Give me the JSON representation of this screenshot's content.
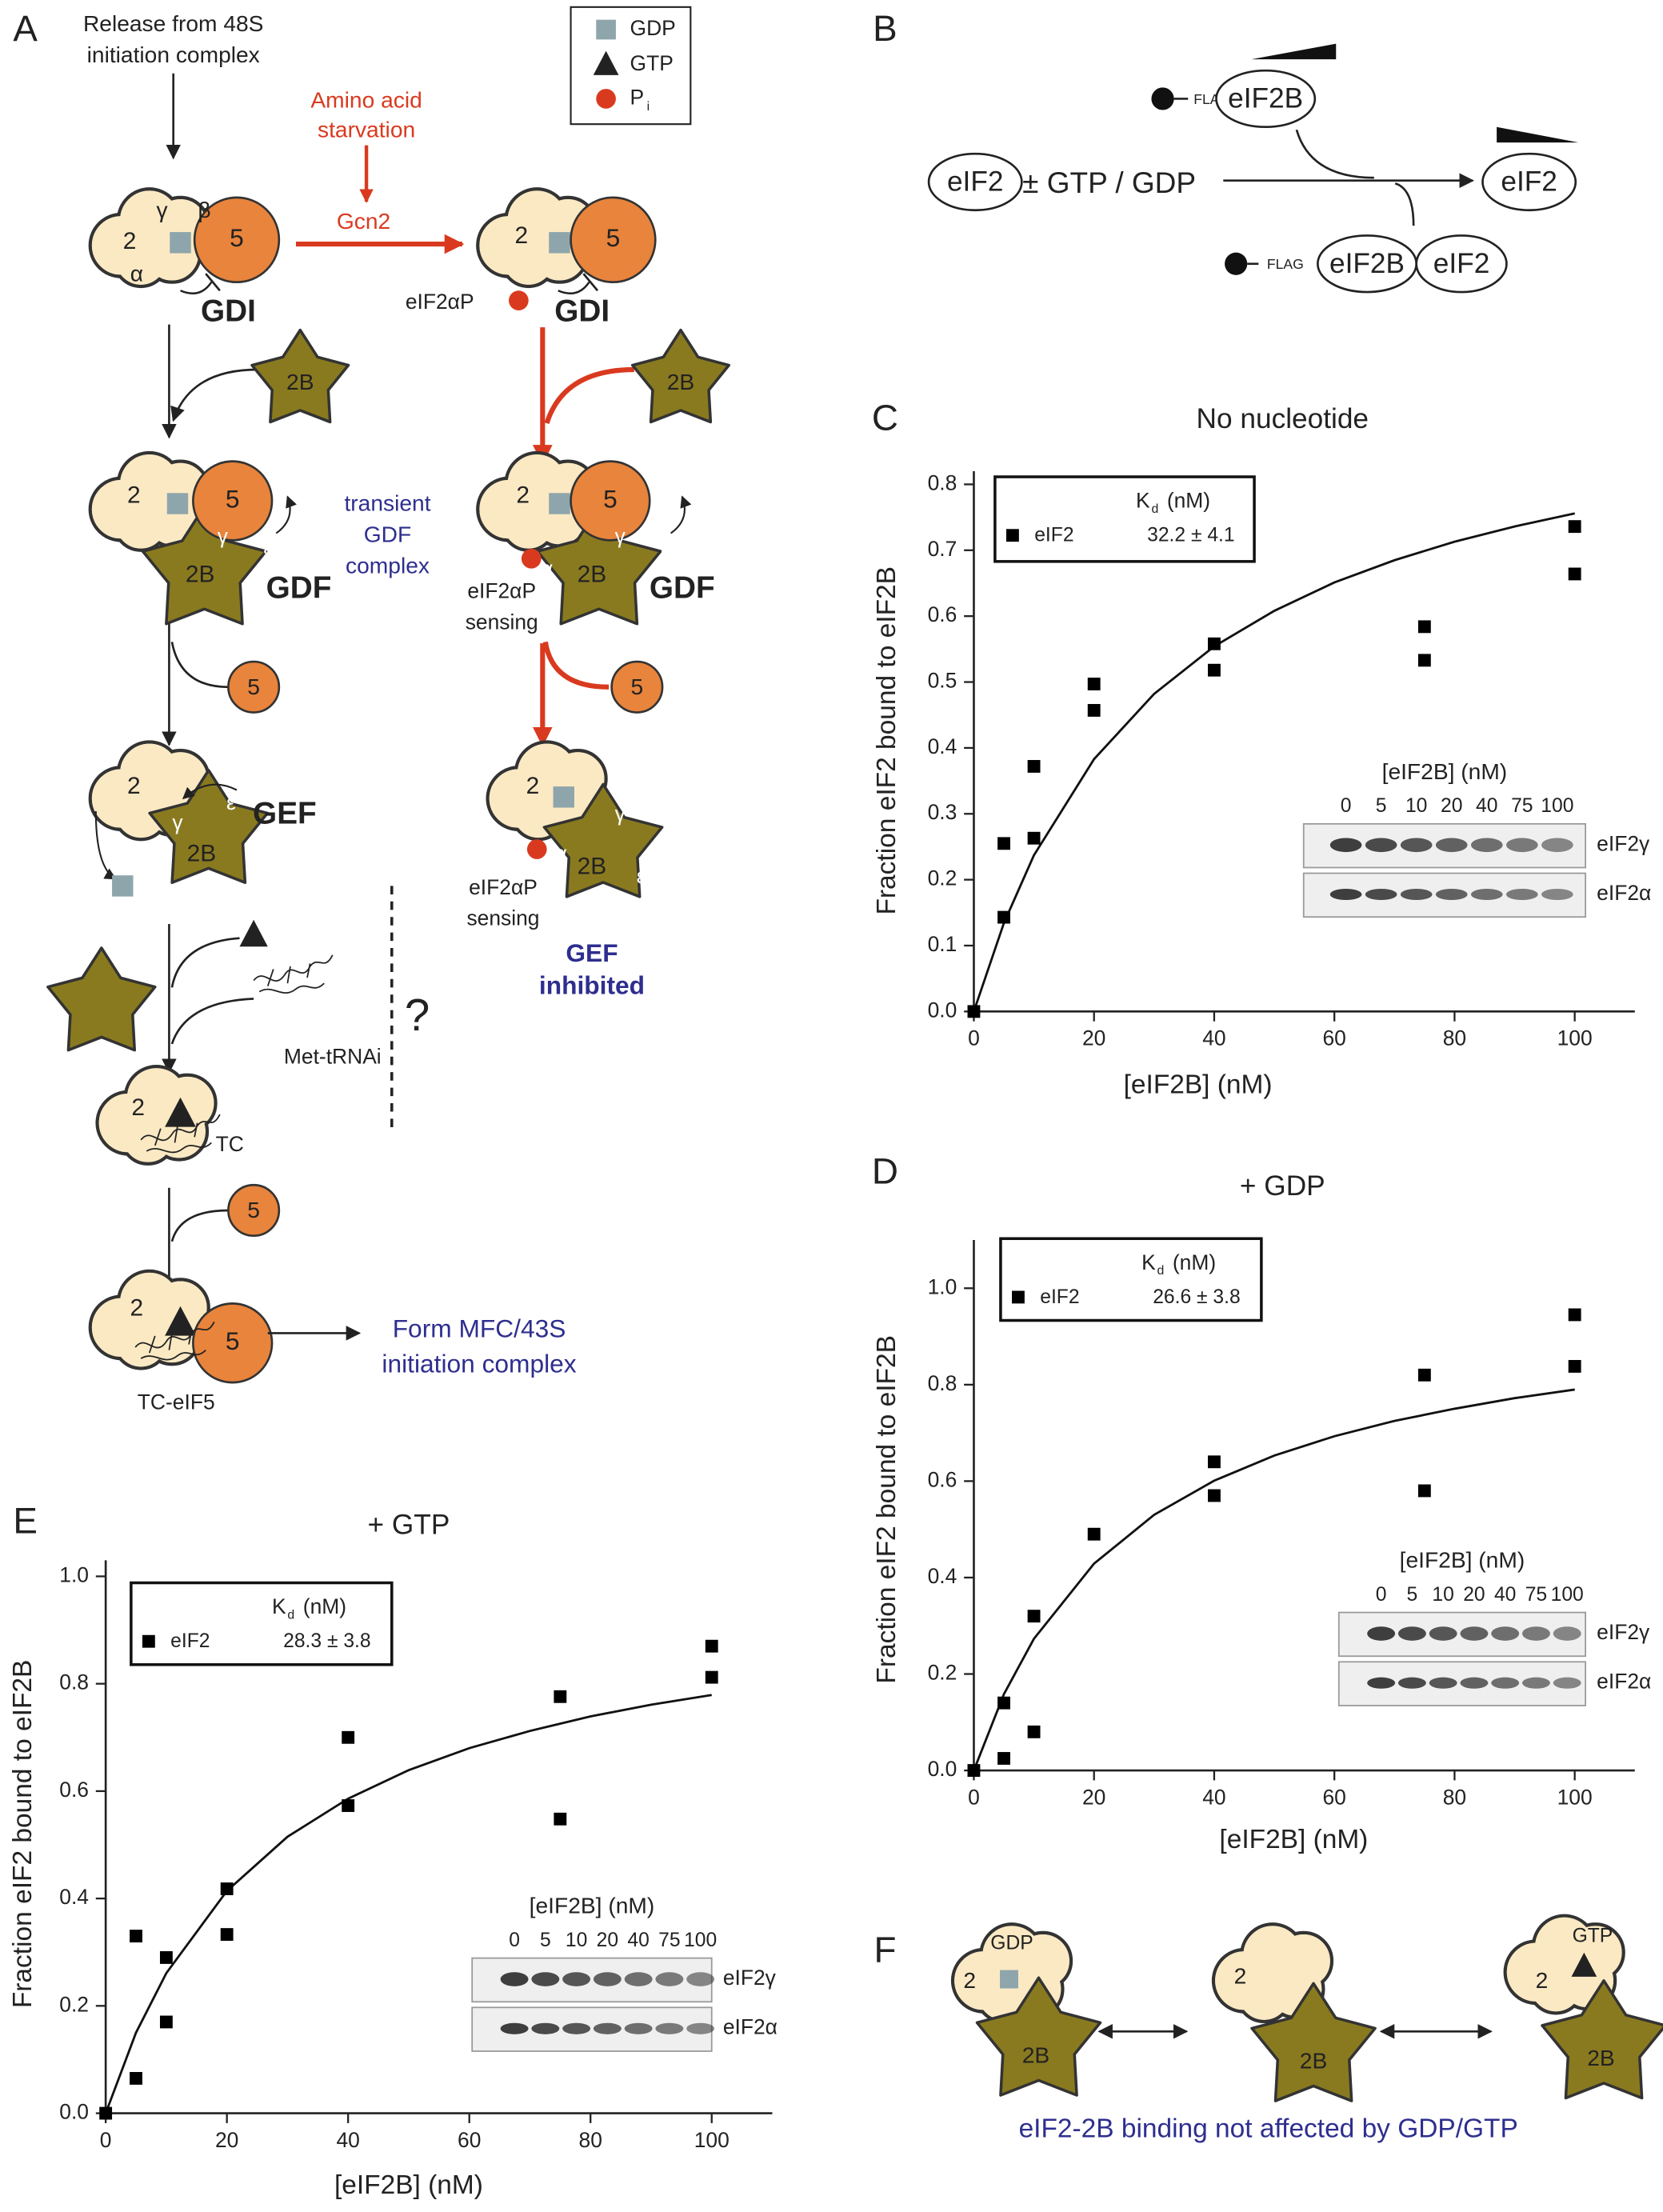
{
  "chart_data": [
    {
      "type": "scatter",
      "panel": "C",
      "title": "No nucleotide",
      "x_label": "[eIF2B] (nM)",
      "y_label": "Fraction eIF2 bound to eIF2B",
      "x": [
        0,
        5,
        5,
        10,
        10,
        20,
        20,
        40,
        40,
        75,
        75,
        100,
        100
      ],
      "series": [
        {
          "name": "eIF2",
          "color": "#000000",
          "values": [
            0,
            0.255,
            0.143,
            0.372,
            0.263,
            0.497,
            0.457,
            0.558,
            0.518,
            0.584,
            0.533,
            0.736,
            0.664
          ],
          "kd": "32.2 ± 4.1"
        }
      ],
      "fit": {
        "x": [
          0,
          5,
          10,
          20,
          30,
          40,
          50,
          60,
          70,
          80,
          90,
          100
        ],
        "y": [
          0,
          0.134,
          0.237,
          0.383,
          0.482,
          0.554,
          0.608,
          0.651,
          0.685,
          0.713,
          0.736,
          0.756
        ]
      },
      "legend_header": "K",
      "legend_header_sub": "d",
      "legend_header_unit": "(nM)",
      "inset": {
        "title": "[eIF2B] (nM)",
        "lanes": [
          0,
          5,
          10,
          20,
          40,
          75,
          100
        ],
        "bands": [
          "eIF2γ",
          "eIF2α"
        ]
      },
      "xlim": [
        0,
        110
      ],
      "xticks": [
        0,
        20,
        40,
        60,
        80,
        100
      ],
      "ylim": [
        0,
        0.82
      ],
      "yticks": [
        {
          "value": 0,
          "label": "0.0"
        },
        0.1,
        0.2,
        0.3,
        0.4,
        0.5,
        0.6,
        0.7,
        0.8
      ]
    },
    {
      "type": "scatter",
      "panel": "D",
      "title": "+ GDP",
      "x_label": "[eIF2B] (nM)",
      "y_label": "Fraction eIF2 bound to eIF2B",
      "x": [
        0,
        5,
        5,
        10,
        10,
        20,
        40,
        40,
        75,
        75,
        100,
        100
      ],
      "series": [
        {
          "name": "eIF2",
          "color": "#000000",
          "values": [
            0,
            0.14,
            0.025,
            0.32,
            0.08,
            0.49,
            0.64,
            0.57,
            0.82,
            0.58,
            0.945,
            0.838
          ],
          "kd": "26.6 ± 3.8"
        }
      ],
      "fit": {
        "x": [
          0,
          5,
          10,
          20,
          30,
          40,
          50,
          60,
          70,
          80,
          90,
          100
        ],
        "y": [
          0,
          0.158,
          0.273,
          0.429,
          0.53,
          0.601,
          0.653,
          0.693,
          0.725,
          0.75,
          0.772,
          0.79
        ]
      },
      "legend_header": "K",
      "legend_header_sub": "d",
      "legend_header_unit": "(nM)",
      "inset": {
        "title": "[eIF2B] (nM)",
        "lanes": [
          0,
          5,
          10,
          20,
          40,
          75,
          100
        ],
        "bands": [
          "eIF2γ",
          "eIF2α"
        ]
      },
      "xlim": [
        0,
        110
      ],
      "xticks": [
        0,
        20,
        40,
        60,
        80,
        100
      ],
      "ylim": [
        0,
        1.1
      ],
      "yticks": [
        {
          "value": 0,
          "label": "0.0"
        },
        0.2,
        0.4,
        0.6,
        0.8,
        {
          "value": 1,
          "label": "1.0"
        }
      ]
    },
    {
      "type": "scatter",
      "panel": "E",
      "title": "+ GTP",
      "x_label": "[eIF2B] (nM)",
      "y_label": "Fraction eIF2 bound to eIF2B",
      "x": [
        0,
        5,
        5,
        10,
        10,
        20,
        20,
        40,
        40,
        75,
        75,
        100,
        100
      ],
      "series": [
        {
          "name": "eIF2",
          "color": "#000000",
          "values": [
            0,
            0.33,
            0.065,
            0.29,
            0.17,
            0.418,
            0.333,
            0.7,
            0.573,
            0.776,
            0.548,
            0.87,
            0.812
          ],
          "kd": "28.3 ± 3.8"
        }
      ],
      "fit": {
        "x": [
          0,
          5,
          10,
          20,
          30,
          40,
          50,
          60,
          70,
          80,
          90,
          100
        ],
        "y": [
          0,
          0.15,
          0.261,
          0.414,
          0.515,
          0.586,
          0.639,
          0.68,
          0.712,
          0.739,
          0.761,
          0.779
        ]
      },
      "legend_header": "K",
      "legend_header_sub": "d",
      "legend_header_unit": "(nM)",
      "inset": {
        "title": "[eIF2B] (nM)",
        "lanes": [
          0,
          5,
          10,
          20,
          40,
          75,
          100
        ],
        "bands": [
          "eIF2γ",
          "eIF2α"
        ]
      },
      "xlim": [
        0,
        110
      ],
      "xticks": [
        0,
        20,
        40,
        60,
        80,
        100
      ],
      "ylim": [
        0,
        1.03
      ],
      "yticks": [
        {
          "value": 0,
          "label": "0.0"
        },
        0.2,
        0.4,
        0.6,
        0.8,
        {
          "value": 1,
          "label": "1.0"
        }
      ]
    }
  ],
  "panel_a": {
    "letter": "A",
    "release": [
      "Release from 48S",
      "initiation complex"
    ],
    "legend": {
      "gdp": "GDP",
      "gtp": "GTP",
      "pi": "P",
      "pi_sub": "i"
    },
    "starvation": [
      "Amino acid",
      "starvation"
    ],
    "gcn2": "Gcn2",
    "subunits": {
      "two": "2",
      "five": "5",
      "eif2b": "2B",
      "alpha": "α",
      "beta": "β",
      "gamma": "γ",
      "epsilon": "ε"
    },
    "gdi": "GDI",
    "eif2ap": "eIF2αP",
    "sensing": "sensing",
    "transient": [
      "transient",
      "GDF",
      "complex"
    ],
    "gdf": "GDF",
    "gef": "GEF",
    "inhibited": "inhibited",
    "met_trna": "Met-tRNAi",
    "question": "?",
    "tc": "TC",
    "tc_eif5": "TC-eIF5",
    "form": [
      "Form MFC/43S",
      "initiation complex"
    ]
  },
  "panel_b": {
    "letter": "B",
    "flag": "FLAG",
    "eif2b": "eIF2B",
    "eif2": "eIF2",
    "nucleotide": "± GTP / GDP"
  },
  "panel_f": {
    "letter": "F",
    "gdp": "GDP",
    "gtp": "GTP",
    "two": "2",
    "eif2b": "2B",
    "caption": "eIF2-2B binding not affected by GDP/GTP"
  }
}
